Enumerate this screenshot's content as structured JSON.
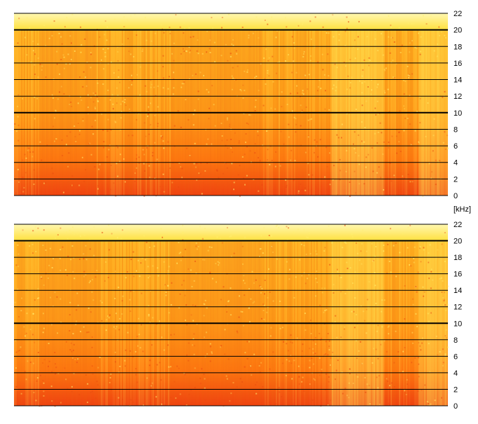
{
  "unit_label": "[kHz]",
  "chart_data": [
    {
      "type": "heatmap",
      "channel": 1,
      "ylim": [
        0,
        22
      ],
      "y_ticks": [
        0,
        2,
        4,
        6,
        8,
        10,
        12,
        14,
        16,
        18,
        20,
        22
      ],
      "y_tick_labels": [
        "0",
        "2",
        "4",
        "6",
        "8",
        "10",
        "12",
        "14",
        "16",
        "18",
        "20",
        "22"
      ],
      "emphasized_gridlines": [
        10,
        20
      ],
      "colors": {
        "low": "#FFF8B0",
        "mid": "#FFC000",
        "high": "#F04010",
        "grid": "#000000"
      },
      "y_label_side": "right",
      "grid": true,
      "bright_regions_along_time_fraction": [
        [
          0.73,
          0.85
        ],
        [
          0.93,
          1.0
        ]
      ],
      "darker_bands_along_time_fraction": [
        [
          0.06,
          0.19
        ],
        [
          0.36,
          0.57
        ]
      ]
    },
    {
      "type": "heatmap",
      "channel": 2,
      "ylim": [
        0,
        22
      ],
      "y_ticks": [
        0,
        2,
        4,
        6,
        8,
        10,
        12,
        14,
        16,
        18,
        20,
        22
      ],
      "y_tick_labels": [
        "0",
        "2",
        "4",
        "6",
        "8",
        "10",
        "12",
        "14",
        "16",
        "18",
        "20",
        "22"
      ],
      "emphasized_gridlines": [
        10,
        20
      ],
      "colors": {
        "low": "#FFF8B0",
        "mid": "#FFC000",
        "high": "#F04010",
        "grid": "#000000"
      },
      "y_label_side": "right",
      "grid": true,
      "bright_regions_along_time_fraction": [
        [
          0.73,
          0.85
        ],
        [
          0.93,
          1.0
        ]
      ],
      "darker_bands_along_time_fraction": [
        [
          0.06,
          0.19
        ],
        [
          0.36,
          0.57
        ]
      ]
    }
  ]
}
